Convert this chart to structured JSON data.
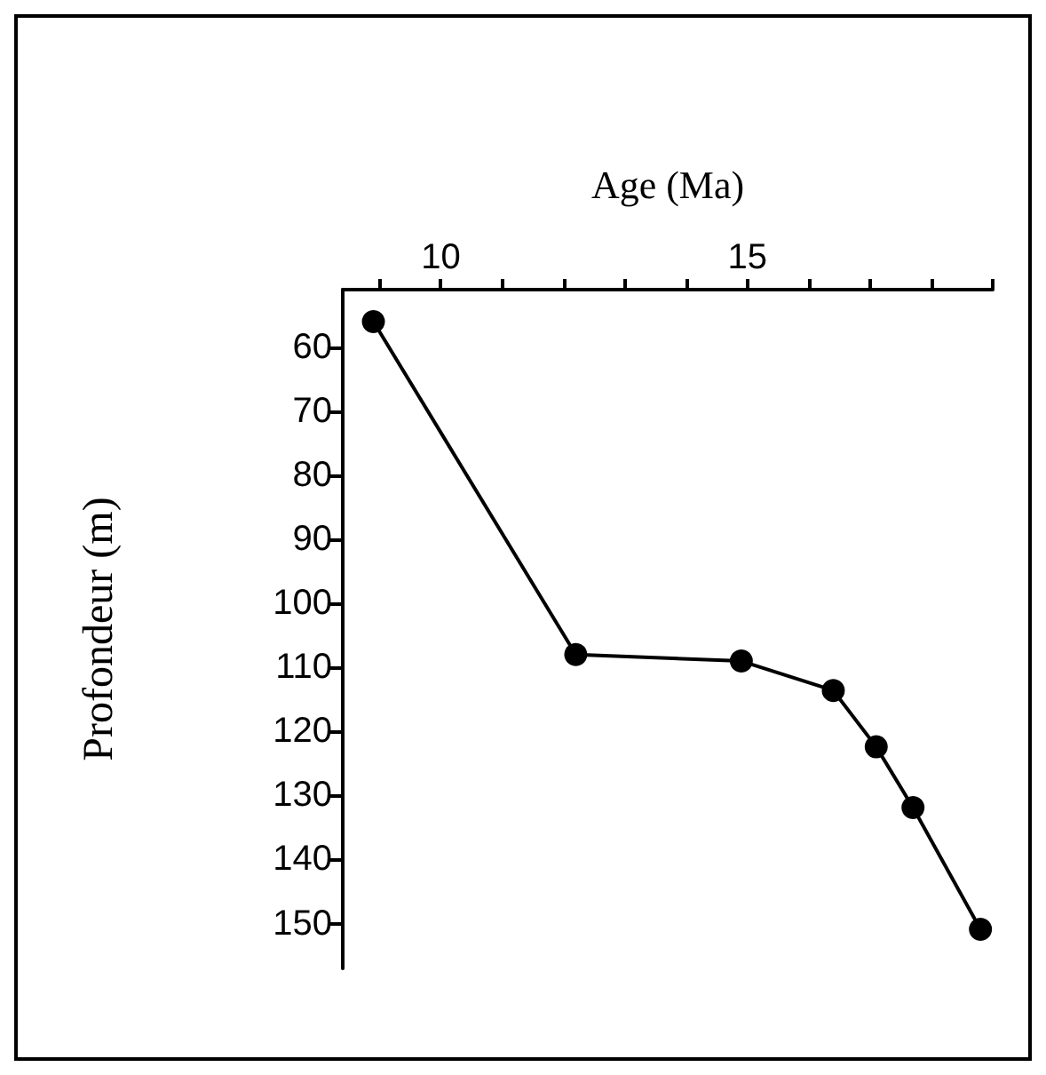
{
  "chart_data": {
    "type": "line",
    "xlabel": "Age (Ma)",
    "ylabel": "Profondeur (m)",
    "x": [
      8.9,
      12.2,
      14.9,
      16.4,
      17.1,
      17.7,
      18.8
    ],
    "series": [
      {
        "color": "#000000",
        "values": [
          56,
          108,
          109,
          113.6,
          122.4,
          131.9,
          150.9
        ]
      }
    ],
    "xlim": [
      8.4,
      19
    ],
    "xticks": [
      {
        "value": 9,
        "label": null
      },
      10,
      {
        "value": 11,
        "label": null
      },
      {
        "value": 12,
        "label": null
      },
      {
        "value": 13,
        "label": null
      },
      {
        "value": 14,
        "label": null
      },
      15,
      {
        "value": 16,
        "label": null
      },
      {
        "value": 17,
        "label": null
      },
      {
        "value": 18,
        "label": null
      },
      {
        "value": 19,
        "label": null
      }
    ],
    "ylim": [
      157,
      51
    ],
    "yticks": [
      60,
      70,
      80,
      90,
      100,
      110,
      120,
      130,
      140,
      150
    ],
    "marker": "circle",
    "line_style": "solid"
  }
}
